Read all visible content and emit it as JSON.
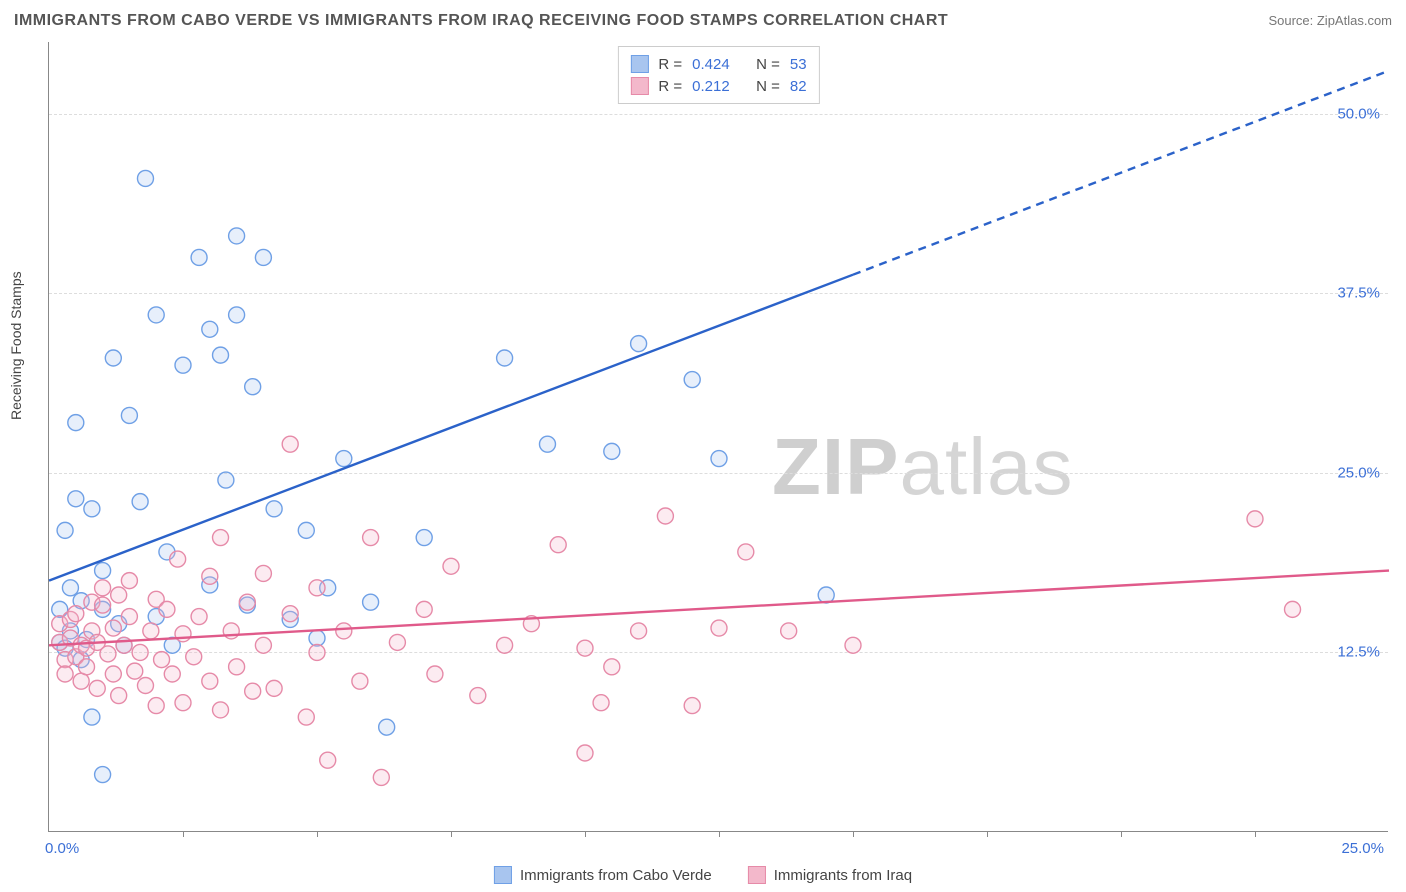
{
  "title": "IMMIGRANTS FROM CABO VERDE VS IMMIGRANTS FROM IRAQ RECEIVING FOOD STAMPS CORRELATION CHART",
  "source": "Source: ZipAtlas.com",
  "y_axis_label": "Receiving Food Stamps",
  "watermark_bold": "ZIP",
  "watermark_rest": "atlas",
  "chart": {
    "type": "scatter_with_regression",
    "xlim": [
      0,
      25
    ],
    "ylim": [
      0,
      55
    ],
    "x_ticks_shown": [
      0,
      25
    ],
    "x_tick_labels": [
      "0.0%",
      "25.0%"
    ],
    "y_gridlines": [
      12.5,
      25.0,
      37.5,
      50.0
    ],
    "y_tick_labels": [
      "12.5%",
      "25.0%",
      "37.5%",
      "50.0%"
    ],
    "x_minor_ticks": [
      2.5,
      5,
      7.5,
      10,
      12.5,
      15,
      17.5,
      20,
      22.5
    ],
    "background_color": "#ffffff",
    "grid_color": "#dddddd",
    "axis_color": "#888888",
    "marker_radius": 8,
    "marker_stroke_width": 1.4,
    "marker_fill_opacity": 0.28,
    "line_width": 2.4,
    "series": [
      {
        "name": "Immigrants from Cabo Verde",
        "color_stroke": "#6fa0e6",
        "color_fill": "#a8c5ef",
        "line_color": "#2b62c9",
        "r_value": "0.424",
        "n_value": "53",
        "regression": {
          "x1": 0,
          "y1": 17.5,
          "x2": 25,
          "y2": 53,
          "solid_until_x": 15
        },
        "points": [
          [
            0.2,
            13.2
          ],
          [
            0.2,
            15.5
          ],
          [
            0.3,
            12.8
          ],
          [
            0.3,
            21.0
          ],
          [
            0.4,
            17.0
          ],
          [
            0.4,
            14.0
          ],
          [
            0.5,
            23.2
          ],
          [
            0.5,
            28.5
          ],
          [
            0.6,
            12.0
          ],
          [
            0.6,
            16.1
          ],
          [
            0.7,
            13.4
          ],
          [
            0.8,
            22.5
          ],
          [
            0.8,
            8.0
          ],
          [
            1.0,
            15.5
          ],
          [
            1.0,
            18.2
          ],
          [
            1.0,
            4.0
          ],
          [
            1.2,
            33.0
          ],
          [
            1.3,
            14.5
          ],
          [
            1.4,
            13.0
          ],
          [
            1.5,
            29.0
          ],
          [
            1.7,
            23.0
          ],
          [
            1.8,
            45.5
          ],
          [
            2.0,
            15.0
          ],
          [
            2.0,
            36.0
          ],
          [
            2.2,
            19.5
          ],
          [
            2.3,
            13.0
          ],
          [
            2.5,
            32.5
          ],
          [
            2.8,
            40.0
          ],
          [
            3.0,
            35.0
          ],
          [
            3.0,
            17.2
          ],
          [
            3.2,
            33.2
          ],
          [
            3.3,
            24.5
          ],
          [
            3.5,
            41.5
          ],
          [
            3.5,
            36.0
          ],
          [
            3.7,
            15.8
          ],
          [
            3.8,
            31.0
          ],
          [
            4.0,
            40.0
          ],
          [
            4.2,
            22.5
          ],
          [
            4.5,
            14.8
          ],
          [
            4.8,
            21.0
          ],
          [
            5.0,
            13.5
          ],
          [
            5.2,
            17.0
          ],
          [
            5.5,
            26.0
          ],
          [
            6.0,
            16.0
          ],
          [
            6.3,
            7.3
          ],
          [
            7.0,
            20.5
          ],
          [
            8.5,
            33.0
          ],
          [
            9.3,
            27.0
          ],
          [
            10.5,
            26.5
          ],
          [
            11.0,
            34.0
          ],
          [
            12.0,
            31.5
          ],
          [
            12.5,
            26.0
          ],
          [
            14.5,
            16.5
          ]
        ]
      },
      {
        "name": "Immigrants from Iraq",
        "color_stroke": "#e68aa8",
        "color_fill": "#f3b8cb",
        "line_color": "#e05a8a",
        "r_value": "0.212",
        "n_value": "82",
        "regression": {
          "x1": 0,
          "y1": 13.0,
          "x2": 25,
          "y2": 18.2,
          "solid_until_x": 25
        },
        "points": [
          [
            0.2,
            13.2
          ],
          [
            0.2,
            14.5
          ],
          [
            0.3,
            12.0
          ],
          [
            0.3,
            11.0
          ],
          [
            0.4,
            13.5
          ],
          [
            0.4,
            14.8
          ],
          [
            0.5,
            12.2
          ],
          [
            0.5,
            15.2
          ],
          [
            0.6,
            13.0
          ],
          [
            0.6,
            10.5
          ],
          [
            0.7,
            11.5
          ],
          [
            0.7,
            12.8
          ],
          [
            0.8,
            16.0
          ],
          [
            0.8,
            14.0
          ],
          [
            0.9,
            10.0
          ],
          [
            0.9,
            13.2
          ],
          [
            1.0,
            15.8
          ],
          [
            1.0,
            17.0
          ],
          [
            1.1,
            12.4
          ],
          [
            1.2,
            11.0
          ],
          [
            1.2,
            14.2
          ],
          [
            1.3,
            16.5
          ],
          [
            1.3,
            9.5
          ],
          [
            1.4,
            13.0
          ],
          [
            1.5,
            15.0
          ],
          [
            1.5,
            17.5
          ],
          [
            1.6,
            11.2
          ],
          [
            1.7,
            12.5
          ],
          [
            1.8,
            10.2
          ],
          [
            1.9,
            14.0
          ],
          [
            2.0,
            16.2
          ],
          [
            2.0,
            8.8
          ],
          [
            2.1,
            12.0
          ],
          [
            2.2,
            15.5
          ],
          [
            2.3,
            11.0
          ],
          [
            2.4,
            19.0
          ],
          [
            2.5,
            9.0
          ],
          [
            2.5,
            13.8
          ],
          [
            2.7,
            12.2
          ],
          [
            2.8,
            15.0
          ],
          [
            3.0,
            10.5
          ],
          [
            3.0,
            17.8
          ],
          [
            3.2,
            20.5
          ],
          [
            3.2,
            8.5
          ],
          [
            3.4,
            14.0
          ],
          [
            3.5,
            11.5
          ],
          [
            3.7,
            16.0
          ],
          [
            3.8,
            9.8
          ],
          [
            4.0,
            13.0
          ],
          [
            4.0,
            18.0
          ],
          [
            4.2,
            10.0
          ],
          [
            4.5,
            15.2
          ],
          [
            4.5,
            27.0
          ],
          [
            4.8,
            8.0
          ],
          [
            5.0,
            12.5
          ],
          [
            5.0,
            17.0
          ],
          [
            5.2,
            5.0
          ],
          [
            5.5,
            14.0
          ],
          [
            5.8,
            10.5
          ],
          [
            6.0,
            20.5
          ],
          [
            6.2,
            3.8
          ],
          [
            6.5,
            13.2
          ],
          [
            7.0,
            15.5
          ],
          [
            7.2,
            11.0
          ],
          [
            7.5,
            18.5
          ],
          [
            8.0,
            9.5
          ],
          [
            8.5,
            13.0
          ],
          [
            9.0,
            14.5
          ],
          [
            9.5,
            20.0
          ],
          [
            10.0,
            5.5
          ],
          [
            10.0,
            12.8
          ],
          [
            10.3,
            9.0
          ],
          [
            10.5,
            11.5
          ],
          [
            11.0,
            14.0
          ],
          [
            11.5,
            22.0
          ],
          [
            12.0,
            8.8
          ],
          [
            12.5,
            14.2
          ],
          [
            13.0,
            19.5
          ],
          [
            13.8,
            14.0
          ],
          [
            15.0,
            13.0
          ],
          [
            22.5,
            21.8
          ],
          [
            23.2,
            15.5
          ]
        ]
      }
    ]
  },
  "legend_top": {
    "r_label": "R =",
    "n_label": "N ="
  },
  "legend_bottom_labels": [
    "Immigrants from Cabo Verde",
    "Immigrants from Iraq"
  ]
}
